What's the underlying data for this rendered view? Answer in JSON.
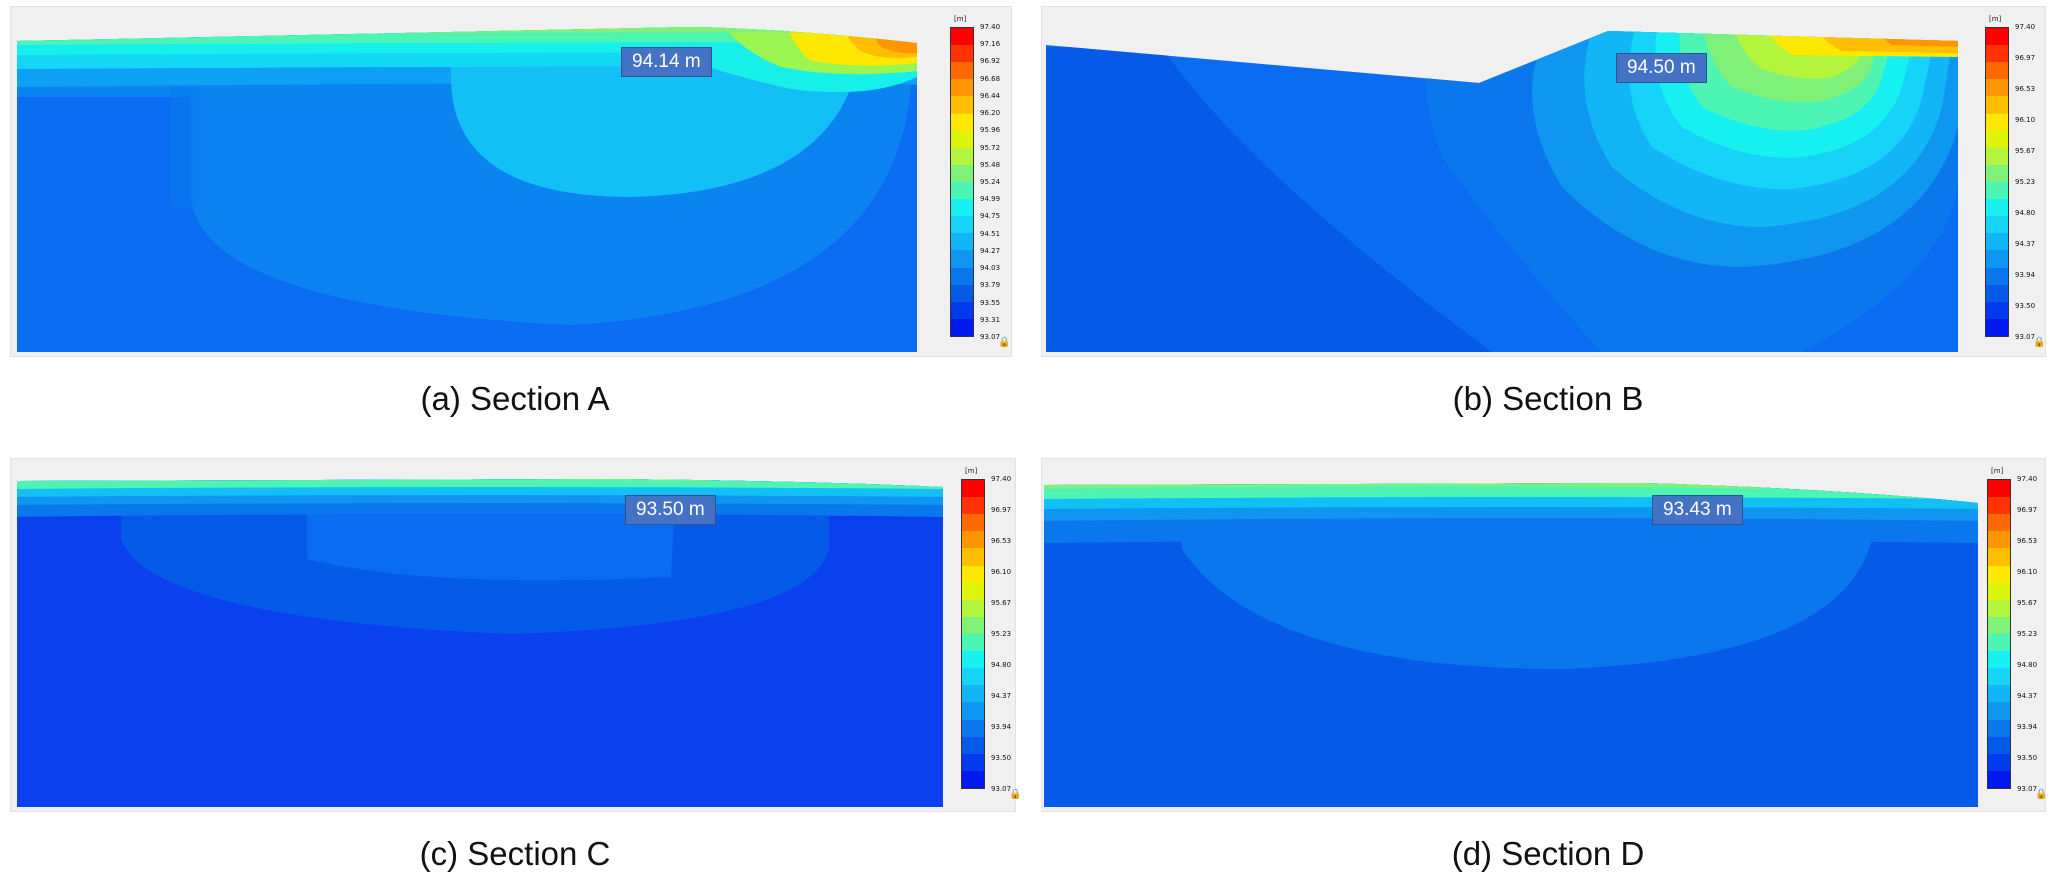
{
  "legend_colors": [
    "#ff0000",
    "#ff3300",
    "#ff6a00",
    "#ff9500",
    "#ffbf00",
    "#ffe800",
    "#dcf50a",
    "#b2f53c",
    "#7ff078",
    "#4df5b4",
    "#16f0f0",
    "#16d4f8",
    "#12b6f6",
    "#0e96f0",
    "#0a78ec",
    "#065ae8",
    "#023aee",
    "#0018f0"
  ],
  "panels": [
    {
      "id": "a",
      "caption": "(a)  Section A",
      "value_label": "94.14 m",
      "legend_unit": "[m]",
      "legend_ticks": [
        "97.40",
        "97.16",
        "96.92",
        "96.68",
        "96.44",
        "96.20",
        "95.96",
        "95.72",
        "95.48",
        "95.24",
        "94.99",
        "94.75",
        "94.51",
        "94.27",
        "94.03",
        "93.79",
        "93.55",
        "93.31",
        "93.07"
      ]
    },
    {
      "id": "b",
      "caption": "(b)  Section B",
      "value_label": "94.50 m",
      "legend_unit": "[m]",
      "legend_ticks": [
        "97.40",
        "96.97",
        "96.53",
        "96.10",
        "95.67",
        "95.23",
        "94.80",
        "94.37",
        "93.94",
        "93.50",
        "93.07"
      ]
    },
    {
      "id": "c",
      "caption": "(c)  Section C",
      "value_label": "93.50 m",
      "legend_unit": "[m]",
      "legend_ticks": [
        "97.40",
        "96.97",
        "96.53",
        "96.10",
        "95.67",
        "95.23",
        "94.80",
        "94.37",
        "93.94",
        "93.50",
        "93.07"
      ]
    },
    {
      "id": "d",
      "caption": "(d)  Section D",
      "value_label": "93.43 m",
      "legend_unit": "[m]",
      "legend_ticks": [
        "97.40",
        "96.97",
        "96.53",
        "96.10",
        "95.67",
        "95.23",
        "94.80",
        "94.37",
        "93.94",
        "93.50",
        "93.07"
      ]
    }
  ]
}
